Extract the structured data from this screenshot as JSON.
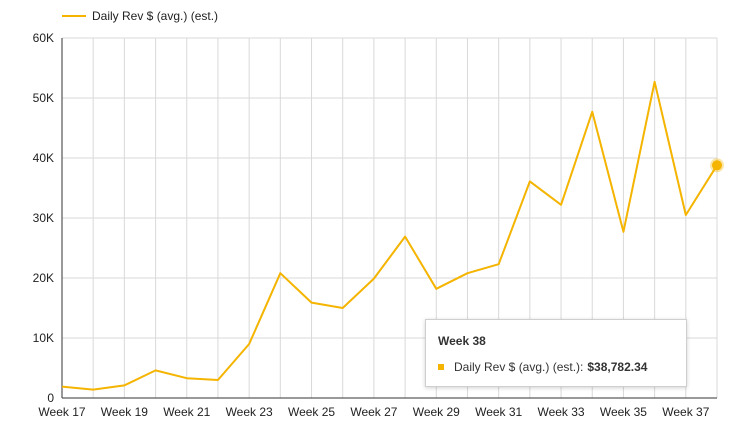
{
  "colors": {
    "series": "#f4b400",
    "grid": "#d9d9d9",
    "axis": "#333333"
  },
  "chart_data": {
    "type": "line",
    "title": "",
    "xlabel": "",
    "ylabel": "",
    "ylim": [
      0,
      60000
    ],
    "yticks": [
      0,
      10000,
      20000,
      30000,
      40000,
      50000,
      60000
    ],
    "ytick_labels": [
      "0",
      "10K",
      "20K",
      "30K",
      "40K",
      "50K",
      "60K"
    ],
    "xtick_labels": [
      "Week 17",
      "Week 19",
      "Week 21",
      "Week 23",
      "Week 25",
      "Week 27",
      "Week 29",
      "Week 31",
      "Week 33",
      "Week 35",
      "Week 37"
    ],
    "grid": true,
    "legend_position": "top-left",
    "x": [
      "Week 17",
      "Week 18",
      "Week 19",
      "Week 20",
      "Week 21",
      "Week 22",
      "Week 23",
      "Week 24",
      "Week 25",
      "Week 26",
      "Week 27",
      "Week 28",
      "Week 29",
      "Week 30",
      "Week 31",
      "Week 32",
      "Week 33",
      "Week 34",
      "Week 35",
      "Week 36",
      "Week 37",
      "Week 38"
    ],
    "series": [
      {
        "name": "Daily Rev $ (avg.) (est.)",
        "values": [
          1900,
          1400,
          2100,
          4600,
          3300,
          3000,
          9000,
          20800,
          15900,
          15000,
          19900,
          26900,
          18200,
          20800,
          22300,
          36100,
          32200,
          47700,
          27700,
          52700,
          30500,
          38782.34
        ]
      }
    ],
    "highlight": {
      "label": "Week 38",
      "series_name": "Daily Rev $ (avg.) (est.):",
      "value_text": "$38,782.34"
    }
  }
}
